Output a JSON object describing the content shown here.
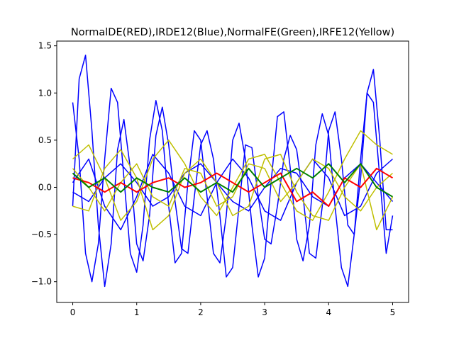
{
  "chart_data": {
    "type": "line",
    "title": "NormalDE(RED),IRDE12(Blue),NormalFE(Green),IRFE12(Yellow)",
    "xlabel": "",
    "ylabel": "",
    "xlim": [
      -0.25,
      5.25
    ],
    "ylim": [
      -1.22,
      1.55
    ],
    "xticks": [
      0,
      1,
      2,
      3,
      4,
      5
    ],
    "xtick_labels": [
      "0",
      "1",
      "2",
      "3",
      "4",
      "5"
    ],
    "yticks": [
      -1.0,
      -0.5,
      0.0,
      0.5,
      1.0,
      1.5
    ],
    "ytick_labels": [
      "−1.0",
      "−0.5",
      "0.0",
      "0.5",
      "1.0",
      "1.5"
    ],
    "grid": false,
    "colors": {
      "red": "#ff0000",
      "blue": "#0000ff",
      "green": "#008000",
      "yellow": "#bfbf00",
      "axes": "#000000"
    },
    "series": [
      {
        "color": "blue",
        "x": [
          0,
          0.1,
          0.2,
          0.3,
          0.4,
          0.5,
          0.6,
          0.7,
          0.8,
          0.9,
          1.0,
          1.1,
          1.2,
          1.3,
          1.4,
          1.5,
          1.6,
          1.7,
          1.8,
          1.9,
          2.0,
          2.1,
          2.2,
          2.3,
          2.4,
          2.5,
          2.6,
          2.7,
          2.8,
          2.9,
          3.0,
          3.1,
          3.2,
          3.3,
          3.4,
          3.5,
          3.6,
          3.7,
          3.8,
          3.9,
          4.0,
          4.1,
          4.2,
          4.3,
          4.4,
          4.5,
          4.6,
          4.7,
          4.8,
          4.9,
          5.0
        ],
        "y": [
          0.9,
          0.3,
          -0.7,
          -1.0,
          -0.6,
          0.3,
          1.05,
          0.9,
          0.1,
          -0.7,
          -0.9,
          -0.4,
          0.5,
          0.92,
          0.6,
          -0.2,
          -0.8,
          -0.7,
          0.05,
          0.6,
          0.5,
          -0.1,
          -0.7,
          -0.8,
          -0.3,
          0.5,
          0.68,
          0.3,
          -0.4,
          -0.95,
          -0.75,
          0.05,
          0.75,
          0.8,
          0.2,
          -0.55,
          -0.78,
          -0.4,
          0.45,
          0.78,
          0.55,
          -0.2,
          -0.85,
          -1.05,
          -0.5,
          0.3,
          1.0,
          0.9,
          0.1,
          -0.7,
          -0.3
        ]
      },
      {
        "color": "blue",
        "x": [
          0,
          0.1,
          0.2,
          0.3,
          0.4,
          0.5,
          0.6,
          0.7,
          0.8,
          0.9,
          1.0,
          1.1,
          1.2,
          1.3,
          1.4,
          1.5,
          1.6,
          1.7,
          1.8,
          1.9,
          2.0,
          2.1,
          2.2,
          2.3,
          2.4,
          2.5,
          2.6,
          2.7,
          2.8,
          2.9,
          3.0,
          3.1,
          3.2,
          3.3,
          3.4,
          3.5,
          3.6,
          3.7,
          3.8,
          3.9,
          4.0,
          4.1,
          4.2,
          4.3,
          4.4,
          4.5,
          4.6,
          4.7,
          4.8,
          4.9,
          5.0
        ],
        "y": [
          -0.2,
          1.15,
          1.4,
          0.6,
          -0.4,
          -1.05,
          -0.6,
          0.4,
          0.72,
          0.2,
          -0.6,
          -0.78,
          -0.3,
          0.55,
          0.85,
          0.45,
          -0.15,
          -0.65,
          -0.7,
          -0.1,
          0.45,
          0.6,
          0.3,
          -0.3,
          -0.95,
          -0.85,
          -0.2,
          0.45,
          0.42,
          -0.1,
          -0.55,
          -0.6,
          -0.2,
          0.3,
          0.55,
          0.4,
          -0.1,
          -0.7,
          -0.75,
          -0.2,
          0.6,
          0.8,
          0.3,
          -0.4,
          -0.5,
          0.1,
          1.0,
          1.25,
          0.5,
          -0.45,
          -0.45
        ]
      },
      {
        "color": "blue",
        "x": [
          0,
          0.25,
          0.5,
          0.75,
          1.0,
          1.25,
          1.5,
          1.75,
          2.0,
          2.25,
          2.5,
          2.75,
          3.0,
          3.25,
          3.5,
          3.75,
          4.0,
          4.25,
          4.5,
          4.75,
          5.0
        ],
        "y": [
          0.05,
          0.3,
          -0.2,
          -0.45,
          -0.1,
          0.35,
          0.15,
          -0.2,
          -0.3,
          0.05,
          0.3,
          0.1,
          -0.25,
          -0.35,
          0.05,
          0.3,
          0.1,
          -0.3,
          -0.2,
          0.15,
          0.3
        ]
      },
      {
        "color": "blue",
        "x": [
          0,
          0.25,
          0.5,
          0.75,
          1.0,
          1.25,
          1.5,
          1.75,
          2.0,
          2.25,
          2.5,
          2.75,
          3.0,
          3.25,
          3.5,
          3.75,
          4.0,
          4.25,
          4.5,
          4.75,
          5.0
        ],
        "y": [
          -0.05,
          -0.15,
          0.1,
          0.25,
          0.05,
          -0.2,
          -0.1,
          0.15,
          0.25,
          0.05,
          -0.15,
          -0.25,
          0.0,
          0.2,
          0.15,
          -0.1,
          -0.2,
          0.1,
          0.25,
          0.05,
          -0.15
        ]
      },
      {
        "color": "yellow",
        "x": [
          0,
          0.25,
          0.5,
          0.75,
          1.0,
          1.25,
          1.5,
          1.75,
          2.0,
          2.25,
          2.5,
          2.75,
          3.0,
          3.25,
          3.5,
          3.75,
          4.0,
          4.25,
          4.5,
          4.75,
          5.0
        ],
        "y": [
          0.3,
          0.45,
          0.1,
          -0.35,
          -0.15,
          0.3,
          0.5,
          0.25,
          -0.1,
          -0.3,
          0.0,
          0.3,
          0.35,
          0.05,
          -0.25,
          -0.35,
          -0.05,
          0.3,
          0.6,
          0.45,
          0.35
        ]
      },
      {
        "color": "yellow",
        "x": [
          0,
          0.25,
          0.5,
          0.75,
          1.0,
          1.25,
          1.5,
          1.75,
          2.0,
          2.25,
          2.5,
          2.75,
          3.0,
          3.25,
          3.5,
          3.75,
          4.0,
          4.25,
          4.5,
          4.75,
          5.0
        ],
        "y": [
          -0.2,
          -0.25,
          0.2,
          0.4,
          0.1,
          -0.45,
          -0.3,
          0.15,
          0.3,
          0.05,
          -0.3,
          -0.2,
          0.3,
          0.35,
          -0.05,
          -0.3,
          -0.35,
          0.0,
          0.25,
          -0.45,
          -0.1
        ]
      },
      {
        "color": "yellow",
        "x": [
          0,
          0.25,
          0.5,
          0.75,
          1.0,
          1.25,
          1.5,
          1.75,
          2.0,
          2.25,
          2.5,
          2.75,
          3.0,
          3.25,
          3.5,
          3.75,
          4.0,
          4.25,
          4.5,
          4.75,
          5.0
        ],
        "y": [
          0.2,
          0.0,
          -0.25,
          0.05,
          0.25,
          -0.1,
          -0.2,
          0.2,
          0.15,
          -0.2,
          -0.1,
          0.25,
          0.2,
          -0.15,
          0.05,
          0.3,
          0.2,
          -0.1,
          -0.25,
          0.0,
          0.15
        ]
      },
      {
        "color": "red",
        "x": [
          0,
          0.25,
          0.5,
          0.75,
          1.0,
          1.25,
          1.5,
          1.75,
          2.0,
          2.25,
          2.5,
          2.75,
          3.0,
          3.25,
          3.5,
          3.75,
          4.0,
          4.25,
          4.5,
          4.75,
          5.0
        ],
        "y": [
          0.1,
          0.05,
          -0.05,
          0.05,
          -0.05,
          0.05,
          0.1,
          0.0,
          0.05,
          0.15,
          0.05,
          -0.05,
          0.05,
          0.15,
          -0.15,
          -0.05,
          -0.2,
          0.1,
          0.0,
          0.2,
          0.1
        ]
      },
      {
        "color": "green",
        "x": [
          0,
          0.25,
          0.5,
          0.75,
          1.0,
          1.25,
          1.5,
          1.75,
          2.0,
          2.25,
          2.5,
          2.75,
          3.0,
          3.25,
          3.5,
          3.75,
          4.0,
          4.25,
          4.5,
          4.75,
          5.0
        ],
        "y": [
          0.15,
          0.0,
          0.1,
          -0.05,
          0.1,
          0.0,
          -0.05,
          0.1,
          -0.05,
          0.05,
          -0.05,
          0.2,
          0.0,
          0.1,
          0.2,
          0.1,
          0.25,
          0.05,
          0.25,
          0.0,
          -0.1
        ]
      }
    ]
  }
}
